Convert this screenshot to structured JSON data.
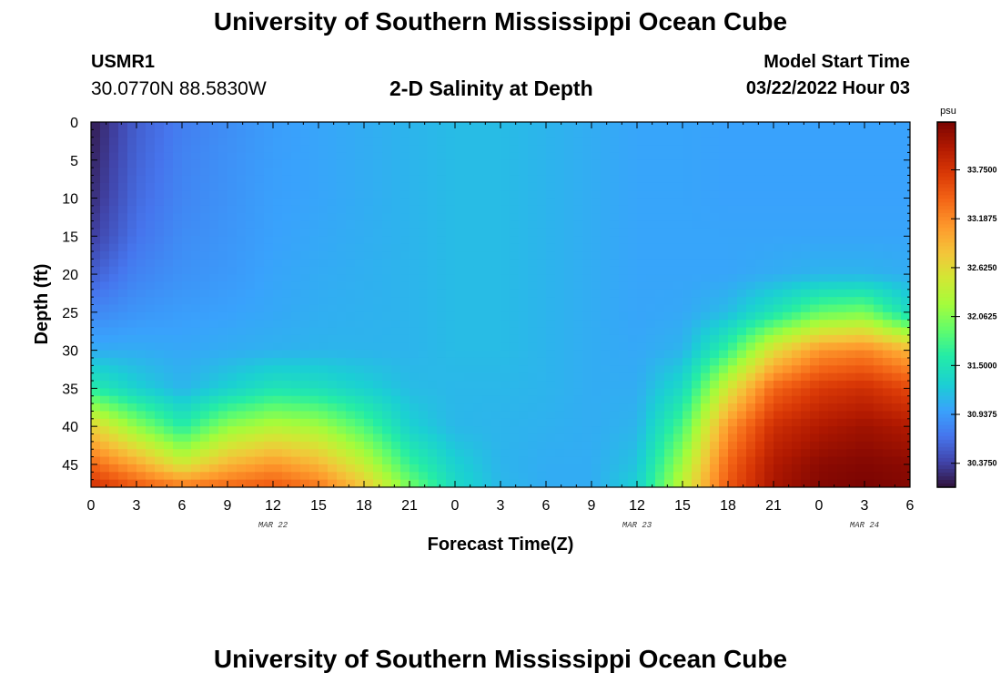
{
  "header": {
    "title": "University of Southern Mississippi Ocean Cube",
    "station": "USMR1",
    "coords": "30.0770N  88.5830W",
    "subtitle": "2-D Salinity at Depth",
    "model_start_label": "Model Start Time",
    "model_start_value": "03/22/2022 Hour 03"
  },
  "footer": {
    "title": "University of Southern Mississippi Ocean Cube"
  },
  "chart_data": {
    "type": "heatmap",
    "title": "2-D Salinity at Depth",
    "xlabel": "Forecast Time(Z)",
    "ylabel": "Depth (ft)",
    "x_ticks": [
      "0",
      "3",
      "6",
      "9",
      "12",
      "15",
      "18",
      "21",
      "0",
      "3",
      "6",
      "9",
      "12",
      "15",
      "18",
      "21",
      "0",
      "3",
      "6"
    ],
    "x_tick_hours": [
      0,
      3,
      6,
      9,
      12,
      15,
      18,
      21,
      24,
      27,
      30,
      33,
      36,
      39,
      42,
      45,
      48,
      51,
      54
    ],
    "date_labels": [
      {
        "label": "MAR 22",
        "hour": 12
      },
      {
        "label": "MAR 23",
        "hour": 36
      },
      {
        "label": "MAR 24",
        "hour": 51
      }
    ],
    "y_ticks": [
      0,
      5,
      10,
      15,
      20,
      25,
      30,
      35,
      40,
      45
    ],
    "ylim": [
      0,
      48
    ],
    "xlim": [
      0,
      54
    ],
    "y_inverted": true,
    "colorbar": {
      "unit": "psu",
      "range": [
        30.1,
        34.3
      ],
      "ticks": [
        30.375,
        30.9375,
        31.5,
        32.0625,
        32.625,
        33.1875,
        33.75
      ],
      "tick_labels": [
        "30.3750",
        "30.9375",
        "31.5000",
        "32.0625",
        "32.6250",
        "33.1875",
        "33.7500"
      ]
    },
    "colormap": [
      [
        0.0,
        "#30123b"
      ],
      [
        0.07,
        "#4145ab"
      ],
      [
        0.14,
        "#4675ed"
      ],
      [
        0.21,
        "#39a2fc"
      ],
      [
        0.28,
        "#1bcfd4"
      ],
      [
        0.36,
        "#24eca6"
      ],
      [
        0.43,
        "#61fc6c"
      ],
      [
        0.5,
        "#a4fc3b"
      ],
      [
        0.57,
        "#d1e834"
      ],
      [
        0.64,
        "#f3c63a"
      ],
      [
        0.71,
        "#fe9b2d"
      ],
      [
        0.79,
        "#f36315"
      ],
      [
        0.86,
        "#d93806"
      ],
      [
        0.93,
        "#b11901"
      ],
      [
        1.0,
        "#7a0402"
      ]
    ],
    "salinity_grid": {
      "note": "Salinity (psu) at depth (ft) rows vs forecast hour columns",
      "hours": [
        0,
        3,
        6,
        9,
        12,
        15,
        18,
        21,
        24,
        27,
        30,
        33,
        36,
        39,
        42,
        45,
        48,
        51,
        54
      ],
      "depths": [
        0,
        5,
        10,
        15,
        20,
        25,
        30,
        35,
        40,
        45,
        48
      ],
      "values": [
        [
          30.15,
          30.55,
          30.75,
          30.85,
          30.95,
          31.0,
          31.05,
          31.1,
          31.15,
          31.15,
          31.1,
          31.05,
          31.0,
          31.0,
          30.98,
          30.98,
          30.98,
          30.98,
          30.98
        ],
        [
          30.2,
          30.58,
          30.78,
          30.87,
          30.96,
          31.0,
          31.05,
          31.1,
          31.15,
          31.15,
          31.1,
          31.05,
          31.0,
          31.0,
          30.98,
          30.98,
          30.98,
          30.98,
          30.98
        ],
        [
          30.25,
          30.62,
          30.8,
          30.88,
          30.97,
          31.0,
          31.05,
          31.1,
          31.15,
          31.15,
          31.1,
          31.05,
          31.0,
          31.0,
          30.98,
          30.98,
          30.98,
          30.98,
          30.98
        ],
        [
          30.35,
          30.68,
          30.84,
          30.9,
          30.98,
          31.02,
          31.06,
          31.1,
          31.15,
          31.15,
          31.1,
          31.05,
          31.0,
          31.0,
          31.0,
          31.0,
          31.0,
          31.0,
          31.0
        ],
        [
          30.55,
          30.78,
          30.88,
          30.92,
          31.0,
          31.04,
          31.07,
          31.1,
          31.15,
          31.15,
          31.1,
          31.05,
          31.0,
          31.0,
          31.0,
          31.05,
          31.1,
          31.1,
          31.05
        ],
        [
          30.8,
          30.9,
          30.95,
          30.98,
          31.02,
          31.06,
          31.08,
          31.1,
          31.15,
          31.15,
          31.1,
          31.05,
          31.0,
          31.02,
          31.15,
          31.5,
          31.9,
          32.0,
          31.4
        ],
        [
          31.05,
          31.05,
          31.02,
          31.05,
          31.08,
          31.1,
          31.1,
          31.1,
          31.15,
          31.15,
          31.1,
          31.05,
          31.02,
          31.1,
          31.7,
          32.6,
          33.1,
          33.2,
          32.9
        ],
        [
          31.6,
          31.3,
          31.1,
          31.3,
          31.5,
          31.45,
          31.3,
          31.15,
          31.12,
          31.12,
          31.1,
          31.05,
          31.05,
          31.4,
          32.5,
          33.4,
          33.7,
          33.8,
          33.6
        ],
        [
          32.7,
          32.1,
          31.6,
          32.1,
          32.3,
          32.2,
          31.8,
          31.3,
          31.12,
          31.1,
          31.08,
          31.05,
          31.1,
          31.8,
          33.1,
          33.8,
          34.0,
          34.1,
          34.0
        ],
        [
          33.4,
          33.0,
          32.5,
          32.9,
          33.1,
          32.9,
          32.4,
          31.7,
          31.3,
          31.1,
          31.05,
          31.05,
          31.2,
          32.2,
          33.4,
          34.0,
          34.2,
          34.25,
          34.2
        ],
        [
          33.8,
          33.5,
          33.3,
          33.4,
          33.5,
          33.3,
          32.8,
          32.0,
          31.4,
          31.12,
          31.05,
          31.05,
          31.3,
          32.4,
          33.5,
          34.05,
          34.25,
          34.3,
          34.25
        ]
      ]
    }
  }
}
